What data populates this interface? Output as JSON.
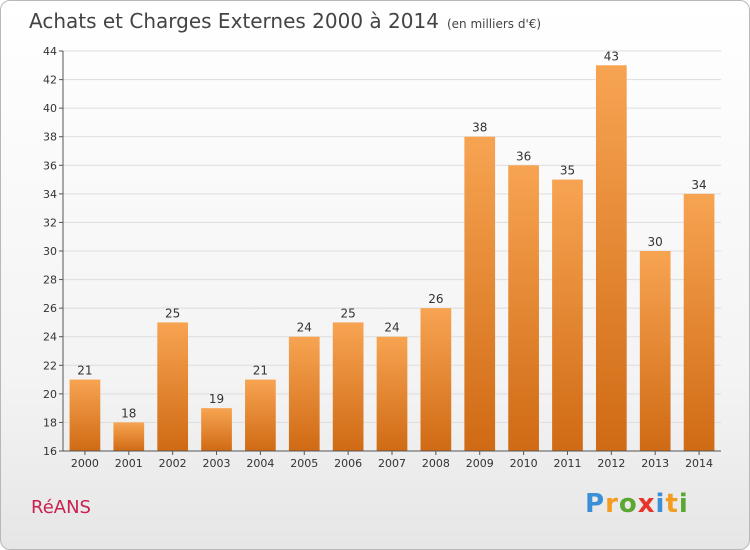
{
  "title": "Achats et Charges Externes 2000 à 2014",
  "subtitle": "(en milliers d'€)",
  "commune": "RéANS",
  "logo": {
    "letters": [
      "P",
      "r",
      "o",
      "x",
      "i",
      "t",
      "i"
    ],
    "colors": [
      "#3a8fd6",
      "#f39c1f",
      "#5aa832",
      "#e8342b",
      "#3a8fd6",
      "#f39c1f",
      "#5aa832"
    ]
  },
  "chart_data": {
    "type": "bar",
    "title": "Achats et Charges Externes 2000 à 2014",
    "subtitle": "(en milliers d'€)",
    "categories": [
      "2000",
      "2001",
      "2002",
      "2003",
      "2004",
      "2005",
      "2006",
      "2007",
      "2008",
      "2009",
      "2010",
      "2011",
      "2012",
      "2013",
      "2014"
    ],
    "values": [
      21,
      18,
      25,
      19,
      21,
      24,
      25,
      24,
      26,
      38,
      36,
      35,
      43,
      30,
      34
    ],
    "ylim": [
      16,
      44
    ],
    "yticks": [
      16,
      18,
      20,
      22,
      24,
      26,
      28,
      30,
      32,
      34,
      36,
      38,
      40,
      42,
      44
    ],
    "grid": true,
    "bar_color": "#f0953a"
  }
}
